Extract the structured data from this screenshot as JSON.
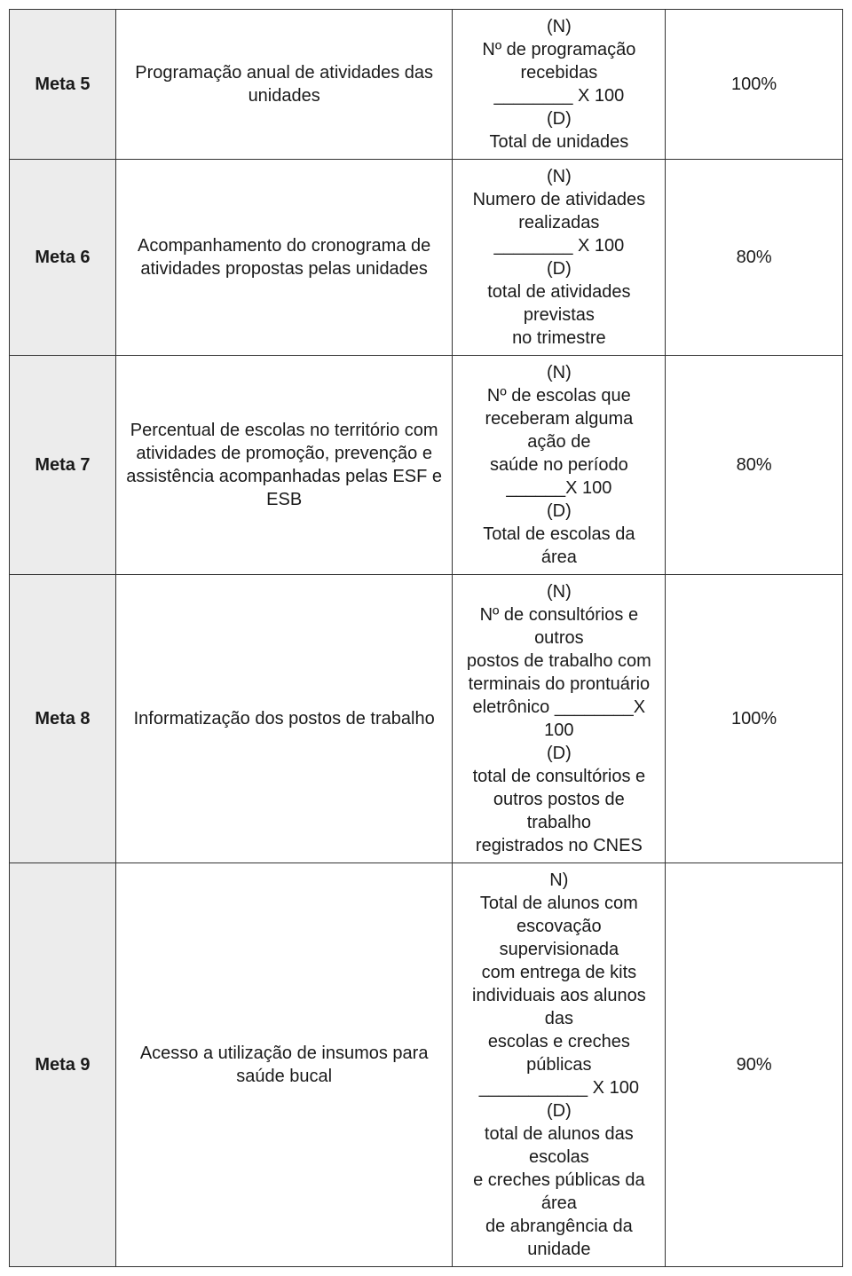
{
  "rows": [
    {
      "meta": "Meta 5",
      "desc": "Programação anual de atividades das unidades",
      "formula": "(N)\nNº de programação\nrecebidas\n________ X 100\n(D)\nTotal de unidades",
      "target": "100%"
    },
    {
      "meta": "Meta 6",
      "desc": "Acompanhamento do cronograma de atividades propostas pelas unidades",
      "formula": "(N)\nNumero de atividades\nrealizadas\n________ X 100\n(D)\ntotal de atividades\nprevistas\nno trimestre",
      "target": "80%"
    },
    {
      "meta": "Meta 7",
      "desc": "Percentual de escolas no território com atividades de promoção, prevenção e assistência acompanhadas pelas ESF e ESB",
      "formula": "(N)\nNº de escolas que\nreceberam alguma\nação de\nsaúde no período\n______X 100\n(D)\nTotal de escolas da\nárea",
      "target": "80%"
    },
    {
      "meta": "Meta 8",
      "desc": "Informatização dos postos de trabalho",
      "formula": "(N)\nNº de consultórios e\noutros\npostos de trabalho com\nterminais do prontuário\neletrônico ________X\n100\n(D)\ntotal de consultórios e\noutros postos de\ntrabalho\nregistrados no CNES",
      "target": "100%"
    },
    {
      "meta": "Meta 9",
      "desc": "Acesso a utilização de insumos para saúde bucal",
      "formula": "N)\nTotal de alunos com\nescovação\nsupervisionada\ncom entrega de kits\nindividuais aos alunos\ndas\nescolas e creches\npúblicas\n___________ X 100\n(D)\ntotal de alunos das\nescolas\ne creches públicas da\nárea\nde abrangência da\nunidade",
      "target": "90%"
    }
  ]
}
